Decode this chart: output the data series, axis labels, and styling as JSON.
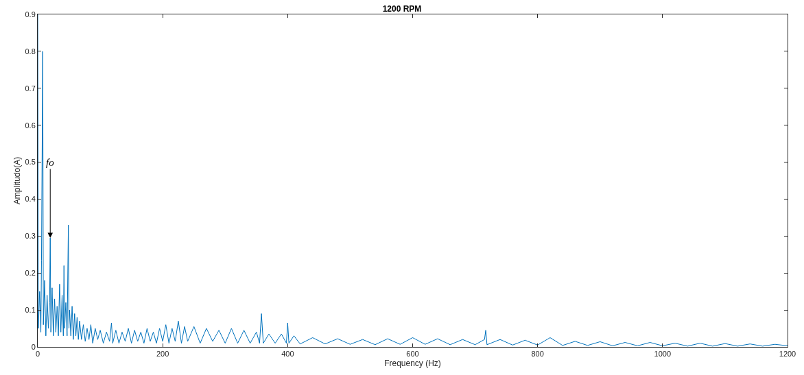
{
  "chart_data": {
    "type": "line",
    "title": "1200 RPM",
    "xlabel": "Frequency (Hz)",
    "ylabel": "Amplitudo(A)",
    "x": [
      0,
      1,
      3,
      5,
      6,
      8,
      9,
      11,
      13,
      15,
      17,
      19,
      20,
      21,
      23,
      25,
      27,
      29,
      31,
      33,
      35,
      37,
      39,
      41,
      42,
      43,
      45,
      47,
      49,
      50,
      51,
      53,
      55,
      57,
      59,
      61,
      63,
      65,
      67,
      70,
      73,
      76,
      79,
      82,
      85,
      88,
      92,
      96,
      100,
      105,
      110,
      115,
      118,
      120,
      125,
      130,
      135,
      140,
      145,
      150,
      155,
      160,
      165,
      170,
      175,
      180,
      185,
      190,
      195,
      200,
      205,
      210,
      215,
      220,
      225,
      230,
      235,
      240,
      250,
      260,
      270,
      280,
      290,
      300,
      310,
      320,
      330,
      340,
      350,
      355,
      358,
      361,
      370,
      380,
      390,
      398,
      400,
      402,
      410,
      420,
      440,
      460,
      480,
      500,
      520,
      540,
      560,
      580,
      600,
      620,
      640,
      660,
      680,
      700,
      715,
      717,
      719,
      740,
      760,
      780,
      800,
      820,
      840,
      860,
      880,
      900,
      920,
      940,
      960,
      980,
      1000,
      1020,
      1040,
      1060,
      1080,
      1100,
      1120,
      1140,
      1160,
      1180,
      1200
    ],
    "series": [
      {
        "color": "#0072bd",
        "values": [
          0.9,
          0.05,
          0.15,
          0.04,
          0.235,
          0.8,
          0.06,
          0.18,
          0.03,
          0.14,
          0.05,
          0.12,
          0.295,
          0.04,
          0.16,
          0.03,
          0.13,
          0.04,
          0.11,
          0.03,
          0.17,
          0.04,
          0.14,
          0.03,
          0.22,
          0.05,
          0.12,
          0.03,
          0.33,
          0.05,
          0.1,
          0.03,
          0.11,
          0.02,
          0.09,
          0.03,
          0.08,
          0.02,
          0.07,
          0.02,
          0.06,
          0.015,
          0.05,
          0.02,
          0.06,
          0.01,
          0.05,
          0.02,
          0.045,
          0.01,
          0.04,
          0.015,
          0.065,
          0.01,
          0.045,
          0.01,
          0.04,
          0.015,
          0.05,
          0.01,
          0.045,
          0.015,
          0.04,
          0.01,
          0.05,
          0.015,
          0.04,
          0.01,
          0.05,
          0.015,
          0.06,
          0.01,
          0.05,
          0.015,
          0.07,
          0.01,
          0.055,
          0.015,
          0.055,
          0.01,
          0.05,
          0.015,
          0.045,
          0.01,
          0.05,
          0.01,
          0.045,
          0.01,
          0.04,
          0.01,
          0.09,
          0.01,
          0.035,
          0.01,
          0.035,
          0.01,
          0.065,
          0.01,
          0.03,
          0.008,
          0.025,
          0.008,
          0.022,
          0.007,
          0.02,
          0.006,
          0.022,
          0.007,
          0.025,
          0.007,
          0.022,
          0.006,
          0.02,
          0.006,
          0.02,
          0.045,
          0.006,
          0.02,
          0.005,
          0.018,
          0.005,
          0.025,
          0.004,
          0.015,
          0.004,
          0.014,
          0.003,
          0.012,
          0.003,
          0.012,
          0.003,
          0.01,
          0.002,
          0.01,
          0.002,
          0.009,
          0.002,
          0.008,
          0.002,
          0.007,
          0.003
        ]
      }
    ],
    "annotations": [
      {
        "text": "fo",
        "x": 20,
        "y": 0.295
      }
    ],
    "xlim": [
      0,
      1200
    ],
    "xticks": [
      0,
      200,
      400,
      600,
      800,
      1000,
      1200
    ],
    "ylim": [
      0,
      0.9
    ],
    "yticks": [
      0,
      0.1,
      0.2,
      0.3,
      0.4,
      0.5,
      0.6,
      0.7,
      0.8,
      0.9
    ],
    "marker": "none",
    "line_style": "solid"
  }
}
